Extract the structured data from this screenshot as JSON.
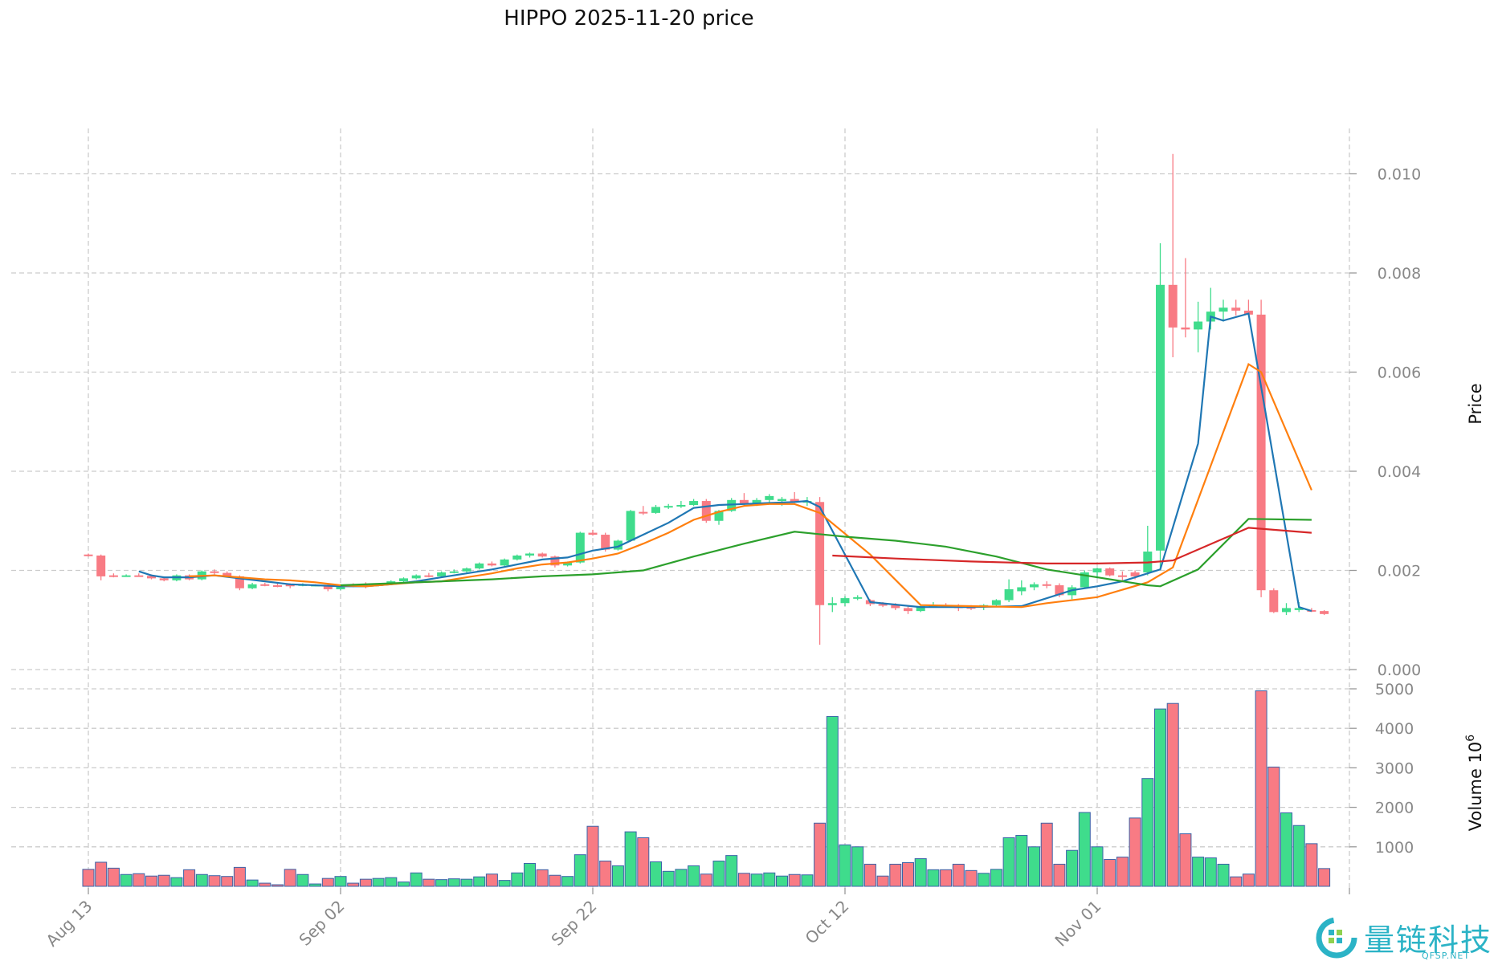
{
  "chart_data": {
    "type": "candlestick",
    "title": "HIPPO  2025-11-20  price",
    "price_axis": {
      "label": "Price",
      "ticks": [
        "0.000",
        "0.002",
        "0.004",
        "0.006",
        "0.008",
        "0.010"
      ],
      "ylim": [
        0,
        0.011
      ],
      "grid": true
    },
    "volume_axis": {
      "label": "Volume  10",
      "exponent": "6",
      "ticks": [
        "1000",
        "2000",
        "3000",
        "4000",
        "5000"
      ],
      "ylim": [
        0,
        5000
      ],
      "grid": true
    },
    "x_ticks": [
      {
        "day": 0,
        "label": "Aug 13"
      },
      {
        "day": 20,
        "label": "Sep 02"
      },
      {
        "day": 40,
        "label": "Sep 22"
      },
      {
        "day": 60,
        "label": "Oct 12"
      },
      {
        "day": 80,
        "label": "Nov 01"
      }
    ],
    "colors": {
      "up": "#3fdc8c",
      "down": "#f87b84",
      "ma1": "#1f77b4",
      "ma2": "#ff7f0e",
      "ma3": "#2ca02c",
      "ma4": "#d62728",
      "grid": "#cccccc"
    },
    "candles": [
      [
        0.00232,
        0.00234,
        0.00228,
        0.0023,
        430,
        "down"
      ],
      [
        0.0023,
        0.00232,
        0.0018,
        0.00188,
        610,
        "down"
      ],
      [
        0.00189,
        0.00194,
        0.00186,
        0.0019,
        460,
        "down"
      ],
      [
        0.00189,
        0.00192,
        0.00187,
        0.0019,
        300,
        "up"
      ],
      [
        0.0019,
        0.00194,
        0.00188,
        0.00189,
        320,
        "down"
      ],
      [
        0.00189,
        0.00192,
        0.00182,
        0.00184,
        260,
        "down"
      ],
      [
        0.00184,
        0.00188,
        0.00178,
        0.0018,
        280,
        "down"
      ],
      [
        0.0018,
        0.00192,
        0.00178,
        0.0019,
        220,
        "up"
      ],
      [
        0.0019,
        0.00192,
        0.0018,
        0.00182,
        420,
        "down"
      ],
      [
        0.00182,
        0.002,
        0.0018,
        0.00198,
        300,
        "up"
      ],
      [
        0.00198,
        0.00202,
        0.00192,
        0.00195,
        270,
        "down"
      ],
      [
        0.00195,
        0.00198,
        0.00186,
        0.00188,
        250,
        "down"
      ],
      [
        0.00188,
        0.0019,
        0.0016,
        0.00164,
        480,
        "down"
      ],
      [
        0.00164,
        0.00175,
        0.00162,
        0.00172,
        160,
        "up"
      ],
      [
        0.00172,
        0.00175,
        0.00168,
        0.0017,
        80,
        "down"
      ],
      [
        0.0017,
        0.00176,
        0.00166,
        0.00168,
        40,
        "down"
      ],
      [
        0.00168,
        0.00174,
        0.00164,
        0.00172,
        430,
        "down"
      ],
      [
        0.00172,
        0.00174,
        0.00168,
        0.0017,
        300,
        "up"
      ],
      [
        0.0017,
        0.00172,
        0.00168,
        0.00171,
        60,
        "up"
      ],
      [
        0.00171,
        0.00173,
        0.00158,
        0.00162,
        200,
        "down"
      ],
      [
        0.00162,
        0.00172,
        0.0016,
        0.0017,
        250,
        "up"
      ],
      [
        0.0017,
        0.00174,
        0.00166,
        0.00168,
        80,
        "down"
      ],
      [
        0.00168,
        0.00176,
        0.00164,
        0.00172,
        180,
        "down"
      ],
      [
        0.0017,
        0.00173,
        0.00168,
        0.00172,
        200,
        "up"
      ],
      [
        0.00172,
        0.0018,
        0.0017,
        0.00178,
        220,
        "up"
      ],
      [
        0.00178,
        0.00186,
        0.00176,
        0.00184,
        110,
        "up"
      ],
      [
        0.00184,
        0.00192,
        0.00182,
        0.0019,
        340,
        "up"
      ],
      [
        0.0019,
        0.00195,
        0.00186,
        0.00188,
        180,
        "down"
      ],
      [
        0.00188,
        0.00198,
        0.00186,
        0.00196,
        170,
        "up"
      ],
      [
        0.00196,
        0.00202,
        0.00194,
        0.00198,
        190,
        "up"
      ],
      [
        0.00198,
        0.00206,
        0.00196,
        0.00204,
        180,
        "up"
      ],
      [
        0.00204,
        0.00216,
        0.00202,
        0.00214,
        240,
        "up"
      ],
      [
        0.00214,
        0.00218,
        0.00208,
        0.0021,
        310,
        "down"
      ],
      [
        0.0021,
        0.00224,
        0.00208,
        0.00222,
        150,
        "up"
      ],
      [
        0.00222,
        0.00232,
        0.0022,
        0.0023,
        340,
        "up"
      ],
      [
        0.0023,
        0.00236,
        0.00226,
        0.00234,
        580,
        "up"
      ],
      [
        0.00234,
        0.00236,
        0.00226,
        0.00228,
        420,
        "down"
      ],
      [
        0.00228,
        0.0023,
        0.00206,
        0.0021,
        280,
        "down"
      ],
      [
        0.0021,
        0.00218,
        0.00208,
        0.00216,
        250,
        "up"
      ],
      [
        0.00216,
        0.00278,
        0.00214,
        0.00276,
        800,
        "up"
      ],
      [
        0.00276,
        0.00282,
        0.0027,
        0.00272,
        1520,
        "down"
      ],
      [
        0.00272,
        0.00276,
        0.00238,
        0.00242,
        640,
        "down"
      ],
      [
        0.00242,
        0.00262,
        0.0024,
        0.0026,
        520,
        "up"
      ],
      [
        0.0026,
        0.00322,
        0.00258,
        0.0032,
        1380,
        "up"
      ],
      [
        0.00318,
        0.0033,
        0.00312,
        0.00316,
        1230,
        "down"
      ],
      [
        0.00316,
        0.00332,
        0.00314,
        0.00328,
        620,
        "up"
      ],
      [
        0.00328,
        0.00334,
        0.00324,
        0.0033,
        380,
        "up"
      ],
      [
        0.0033,
        0.0034,
        0.00326,
        0.00332,
        430,
        "up"
      ],
      [
        0.00332,
        0.00344,
        0.0033,
        0.0034,
        520,
        "up"
      ],
      [
        0.0034,
        0.00344,
        0.00296,
        0.003,
        310,
        "down"
      ],
      [
        0.003,
        0.00322,
        0.00292,
        0.0032,
        640,
        "up"
      ],
      [
        0.0032,
        0.00346,
        0.00318,
        0.00342,
        780,
        "up"
      ],
      [
        0.00342,
        0.00356,
        0.0033,
        0.00334,
        330,
        "down"
      ],
      [
        0.00334,
        0.00346,
        0.0033,
        0.00342,
        310,
        "up"
      ],
      [
        0.00342,
        0.00354,
        0.00336,
        0.0035,
        340,
        "up"
      ],
      [
        0.0034,
        0.00348,
        0.0033,
        0.00344,
        260,
        "up"
      ],
      [
        0.00344,
        0.00358,
        0.00336,
        0.00338,
        300,
        "down"
      ],
      [
        0.00338,
        0.00348,
        0.0033,
        0.0034,
        290,
        "up"
      ],
      [
        0.00338,
        0.00348,
        0.0005,
        0.0013,
        1600,
        "down"
      ],
      [
        0.0013,
        0.00146,
        0.00116,
        0.00134,
        4300,
        "up"
      ],
      [
        0.00134,
        0.00148,
        0.00128,
        0.00144,
        1050,
        "up"
      ],
      [
        0.00144,
        0.0015,
        0.0014,
        0.00146,
        1000,
        "up"
      ],
      [
        0.0014,
        0.00142,
        0.00128,
        0.00132,
        560,
        "down"
      ],
      [
        0.00132,
        0.00136,
        0.00126,
        0.0013,
        260,
        "down"
      ],
      [
        0.0013,
        0.00134,
        0.0012,
        0.00124,
        560,
        "down"
      ],
      [
        0.00124,
        0.00128,
        0.00112,
        0.00118,
        600,
        "down"
      ],
      [
        0.00118,
        0.0013,
        0.00116,
        0.00128,
        700,
        "up"
      ],
      [
        0.00128,
        0.00136,
        0.00126,
        0.0013,
        420,
        "up"
      ],
      [
        0.0013,
        0.00134,
        0.00126,
        0.00128,
        420,
        "down"
      ],
      [
        0.00128,
        0.00132,
        0.00118,
        0.00124,
        560,
        "down"
      ],
      [
        0.00124,
        0.0013,
        0.0012,
        0.00126,
        400,
        "down"
      ],
      [
        0.00126,
        0.00132,
        0.0012,
        0.0013,
        330,
        "up"
      ],
      [
        0.0013,
        0.00142,
        0.00126,
        0.0014,
        430,
        "up"
      ],
      [
        0.0014,
        0.00182,
        0.00136,
        0.00162,
        1230,
        "up"
      ],
      [
        0.00158,
        0.0018,
        0.0015,
        0.00166,
        1290,
        "up"
      ],
      [
        0.00166,
        0.00176,
        0.0016,
        0.00172,
        1000,
        "up"
      ],
      [
        0.00172,
        0.00178,
        0.00164,
        0.0017,
        1600,
        "down"
      ],
      [
        0.0017,
        0.00174,
        0.00146,
        0.0015,
        560,
        "down"
      ],
      [
        0.0015,
        0.0017,
        0.00142,
        0.00166,
        910,
        "up"
      ],
      [
        0.00166,
        0.002,
        0.00164,
        0.00196,
        1870,
        "up"
      ],
      [
        0.00196,
        0.00206,
        0.00184,
        0.00204,
        1000,
        "up"
      ],
      [
        0.00204,
        0.00206,
        0.00188,
        0.0019,
        680,
        "down"
      ],
      [
        0.0019,
        0.00198,
        0.0018,
        0.00188,
        740,
        "down"
      ],
      [
        0.00188,
        0.002,
        0.00182,
        0.00196,
        1730,
        "down"
      ],
      [
        0.00196,
        0.0029,
        0.0019,
        0.00238,
        2730,
        "up"
      ],
      [
        0.0024,
        0.0086,
        0.002,
        0.00776,
        4490,
        "up"
      ],
      [
        0.00776,
        0.0104,
        0.0063,
        0.0069,
        4630,
        "down"
      ],
      [
        0.0069,
        0.0083,
        0.0067,
        0.00686,
        1330,
        "down"
      ],
      [
        0.00686,
        0.00742,
        0.0064,
        0.00702,
        740,
        "up"
      ],
      [
        0.00702,
        0.0077,
        0.00686,
        0.00722,
        720,
        "up"
      ],
      [
        0.00722,
        0.00746,
        0.00702,
        0.0073,
        560,
        "up"
      ],
      [
        0.0073,
        0.00746,
        0.00714,
        0.00724,
        240,
        "down"
      ],
      [
        0.00724,
        0.00746,
        0.00712,
        0.00716,
        310,
        "down"
      ],
      [
        0.00716,
        0.00746,
        0.00146,
        0.0016,
        4950,
        "down"
      ],
      [
        0.0016,
        0.00164,
        0.00114,
        0.00116,
        3020,
        "down"
      ],
      [
        0.00116,
        0.00134,
        0.0011,
        0.00124,
        1860,
        "up"
      ],
      [
        0.00124,
        0.00136,
        0.00116,
        0.0012,
        1540,
        "up"
      ],
      [
        0.0012,
        0.00124,
        0.00116,
        0.00118,
        1080,
        "down"
      ],
      [
        0.00118,
        0.0012,
        0.0011,
        0.00112,
        450,
        "down"
      ]
    ],
    "moving_averages": [
      {
        "color": "#1f77b4",
        "points": [
          [
            4,
            0.00198
          ],
          [
            5,
            0.0019
          ],
          [
            6,
            0.00186
          ],
          [
            8,
            0.00186
          ],
          [
            10,
            0.0019
          ],
          [
            12,
            0.00184
          ],
          [
            14,
            0.00178
          ],
          [
            16,
            0.00172
          ],
          [
            18,
            0.0017
          ],
          [
            20,
            0.00168
          ],
          [
            22,
            0.00168
          ],
          [
            24,
            0.00172
          ],
          [
            26,
            0.00178
          ],
          [
            28,
            0.00186
          ],
          [
            30,
            0.00194
          ],
          [
            32,
            0.00202
          ],
          [
            34,
            0.00212
          ],
          [
            36,
            0.00222
          ],
          [
            38,
            0.00226
          ],
          [
            40,
            0.0024
          ],
          [
            42,
            0.00248
          ],
          [
            44,
            0.00272
          ],
          [
            46,
            0.00296
          ],
          [
            48,
            0.00326
          ],
          [
            50,
            0.00332
          ],
          [
            52,
            0.00334
          ],
          [
            54,
            0.00336
          ],
          [
            56,
            0.00338
          ],
          [
            57,
            0.0034
          ],
          [
            58,
            0.00328
          ],
          [
            62,
            0.00136
          ],
          [
            66,
            0.00126
          ],
          [
            70,
            0.00126
          ],
          [
            74,
            0.00128
          ],
          [
            78,
            0.0016
          ],
          [
            80,
            0.00168
          ],
          [
            82,
            0.00178
          ],
          [
            84,
            0.00194
          ],
          [
            85,
            0.00202
          ],
          [
            88,
            0.00456
          ],
          [
            89,
            0.00712
          ],
          [
            90,
            0.00704
          ],
          [
            92,
            0.00718
          ],
          [
            96,
            0.00126
          ],
          [
            97,
            0.00118
          ]
        ]
      },
      {
        "color": "#ff7f0e",
        "points": [
          [
            8,
            0.00188
          ],
          [
            10,
            0.0019
          ],
          [
            12,
            0.00186
          ],
          [
            14,
            0.00182
          ],
          [
            16,
            0.0018
          ],
          [
            18,
            0.00176
          ],
          [
            20,
            0.0017
          ],
          [
            22,
            0.00168
          ],
          [
            24,
            0.00172
          ],
          [
            26,
            0.00176
          ],
          [
            28,
            0.00178
          ],
          [
            30,
            0.00186
          ],
          [
            32,
            0.00194
          ],
          [
            34,
            0.00204
          ],
          [
            36,
            0.00212
          ],
          [
            38,
            0.00216
          ],
          [
            40,
            0.00224
          ],
          [
            42,
            0.00234
          ],
          [
            44,
            0.00254
          ],
          [
            46,
            0.00276
          ],
          [
            48,
            0.00302
          ],
          [
            50,
            0.00318
          ],
          [
            52,
            0.0033
          ],
          [
            54,
            0.00334
          ],
          [
            56,
            0.00334
          ],
          [
            58,
            0.00316
          ],
          [
            62,
            0.00232
          ],
          [
            66,
            0.0013
          ],
          [
            70,
            0.00128
          ],
          [
            74,
            0.00126
          ],
          [
            76,
            0.00134
          ],
          [
            80,
            0.00146
          ],
          [
            84,
            0.00176
          ],
          [
            86,
            0.00206
          ],
          [
            92,
            0.00616
          ],
          [
            93,
            0.006
          ],
          [
            97,
            0.00362
          ]
        ]
      },
      {
        "color": "#2ca02c",
        "points": [
          [
            20,
            0.0017
          ],
          [
            24,
            0.00174
          ],
          [
            28,
            0.00178
          ],
          [
            32,
            0.00182
          ],
          [
            36,
            0.00188
          ],
          [
            40,
            0.00192
          ],
          [
            44,
            0.002
          ],
          [
            48,
            0.00228
          ],
          [
            52,
            0.00254
          ],
          [
            56,
            0.00278
          ],
          [
            60,
            0.00268
          ],
          [
            64,
            0.0026
          ],
          [
            68,
            0.00248
          ],
          [
            72,
            0.00228
          ],
          [
            76,
            0.00202
          ],
          [
            80,
            0.00186
          ],
          [
            84,
            0.0017
          ],
          [
            85,
            0.00168
          ],
          [
            88,
            0.00202
          ],
          [
            92,
            0.00304
          ],
          [
            97,
            0.00302
          ]
        ]
      },
      {
        "color": "#d62728",
        "points": [
          [
            59,
            0.0023
          ],
          [
            64,
            0.00224
          ],
          [
            70,
            0.00218
          ],
          [
            76,
            0.00214
          ],
          [
            80,
            0.00214
          ],
          [
            84,
            0.00216
          ],
          [
            86,
            0.0022
          ],
          [
            92,
            0.00286
          ],
          [
            97,
            0.00276
          ]
        ]
      }
    ]
  },
  "watermark": {
    "name": "量链科技",
    "url": "QFSP.NET"
  }
}
